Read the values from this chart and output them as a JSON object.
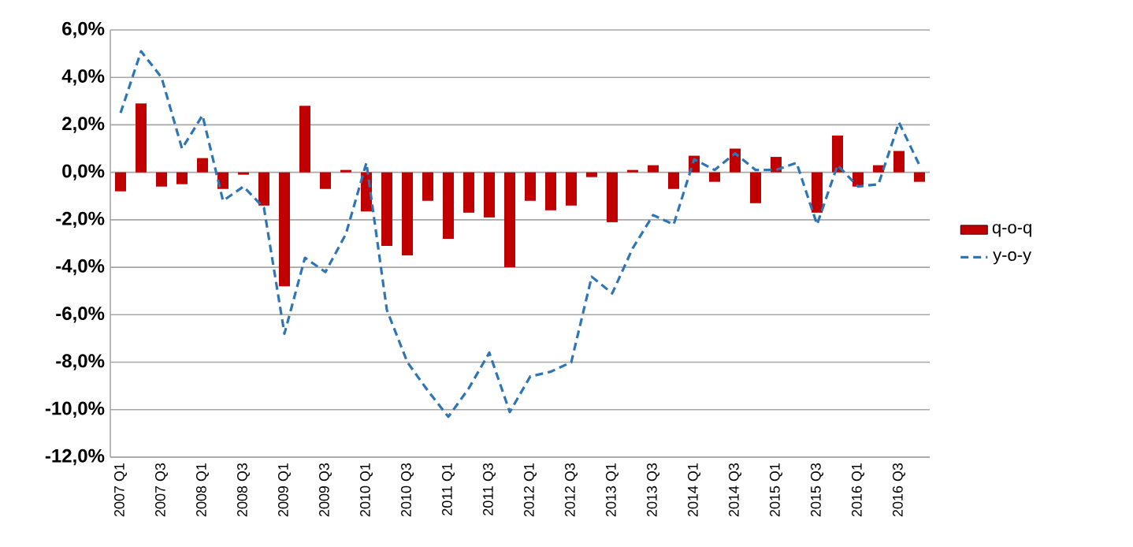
{
  "chart_data": {
    "type": "bar",
    "categories": [
      "2007 Q1",
      null,
      "2007 Q3",
      null,
      "2008 Q1",
      null,
      "2008 Q3",
      null,
      "2009 Q1",
      null,
      "2009 Q3",
      null,
      "2010 Q1",
      null,
      "2010 Q3",
      null,
      "2011 Q1",
      null,
      "2011 Q3",
      null,
      "2012 Q1",
      null,
      "2012 Q3",
      null,
      "2013 Q1",
      null,
      "2013 Q3",
      null,
      "2014 Q1",
      null,
      "2014 Q3",
      null,
      "2015 Q1",
      null,
      "2015 Q3",
      null,
      "2016 Q1",
      null,
      "2016 Q3",
      null
    ],
    "series": [
      {
        "name": "q-o-q",
        "color": "#c00000",
        "values": [
          -0.8,
          2.9,
          -0.6,
          -0.5,
          0.6,
          -0.7,
          -0.1,
          -1.4,
          -4.8,
          2.8,
          -0.7,
          0.1,
          -1.65,
          -3.1,
          -3.5,
          -1.2,
          -2.8,
          -1.7,
          -1.9,
          -4.0,
          -1.2,
          -1.6,
          -1.4,
          -0.2,
          -2.1,
          0.1,
          0.3,
          -0.7,
          0.7,
          -0.4,
          1.0,
          -1.3,
          0.65,
          0.0,
          -1.7,
          1.55,
          -0.6,
          0.3,
          0.9,
          -0.4
        ]
      },
      {
        "name": "y-o-y",
        "type": "line",
        "color": "#2e75b6",
        "line_style": "dashed",
        "marker": "none",
        "values": [
          2.5,
          5.1,
          4.0,
          1.0,
          2.4,
          -1.2,
          -0.6,
          -1.5,
          -6.8,
          -3.6,
          -4.2,
          -2.6,
          0.4,
          -5.8,
          -8.0,
          -9.2,
          -10.3,
          -9.1,
          -7.6,
          -10.1,
          -8.6,
          -8.4,
          -8.0,
          -4.4,
          -5.1,
          -3.2,
          -1.8,
          -2.2,
          0.55,
          0.1,
          0.8,
          0.1,
          0.1,
          0.4,
          -2.2,
          0.3,
          -0.6,
          -0.5,
          2.1,
          0.3
        ]
      }
    ],
    "ylim": [
      -12,
      6
    ],
    "yticks": [
      {
        "value": -12,
        "label": "-12,0%"
      },
      {
        "value": -10,
        "label": "-10,0%"
      },
      {
        "value": -8,
        "label": "-8,0%"
      },
      {
        "value": -6,
        "label": "-6,0%"
      },
      {
        "value": -4,
        "label": "-4,0%"
      },
      {
        "value": -2,
        "label": "-2,0%"
      },
      {
        "value": 0,
        "label": "0,0%"
      },
      {
        "value": 2,
        "label": "2,0%"
      },
      {
        "value": 4,
        "label": "4,0%"
      },
      {
        "value": 6,
        "label": "6,0%"
      }
    ],
    "grid": "y",
    "legend": "right"
  }
}
